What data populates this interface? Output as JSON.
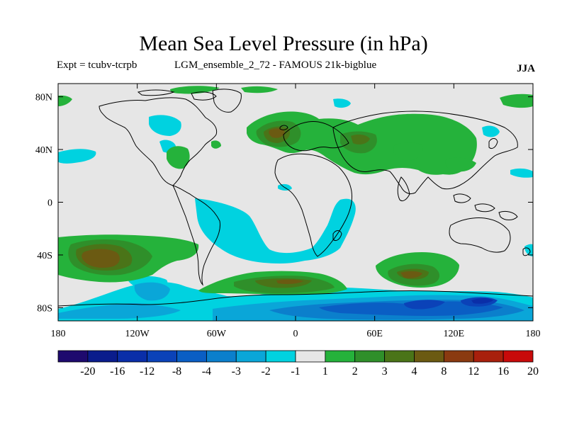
{
  "title": "Mean Sea Level Pressure (in hPa)",
  "subtitle_left": "Expt = tcubv-tcrpb",
  "subtitle_center": "LGM_ensemble_2_72 - FAMOUS 21k-bigblue",
  "season": "JJA",
  "map": {
    "background_color": "#e6e6e6",
    "lat_ticks": [
      "80N",
      "40N",
      "0",
      "40S",
      "80S"
    ],
    "lon_ticks": [
      "180",
      "120W",
      "60W",
      "0",
      "60E",
      "120E",
      "180"
    ]
  },
  "colorbar": {
    "labels": [
      "-20",
      "-16",
      "-12",
      "-8",
      "-4",
      "-3",
      "-2",
      "-1",
      "1",
      "2",
      "3",
      "4",
      "8",
      "12",
      "16",
      "20"
    ],
    "colors": [
      "#1e0a6e",
      "#0a1c8c",
      "#0a2ea8",
      "#0b42b8",
      "#0a5ec4",
      "#0b7fcc",
      "#0aa6d8",
      "#00d2e0",
      "#e6e6e6",
      "#25b23b",
      "#2f8f2a",
      "#4a7418",
      "#6b5a12",
      "#8a3a10",
      "#a8200c",
      "#c80a0a"
    ]
  }
}
